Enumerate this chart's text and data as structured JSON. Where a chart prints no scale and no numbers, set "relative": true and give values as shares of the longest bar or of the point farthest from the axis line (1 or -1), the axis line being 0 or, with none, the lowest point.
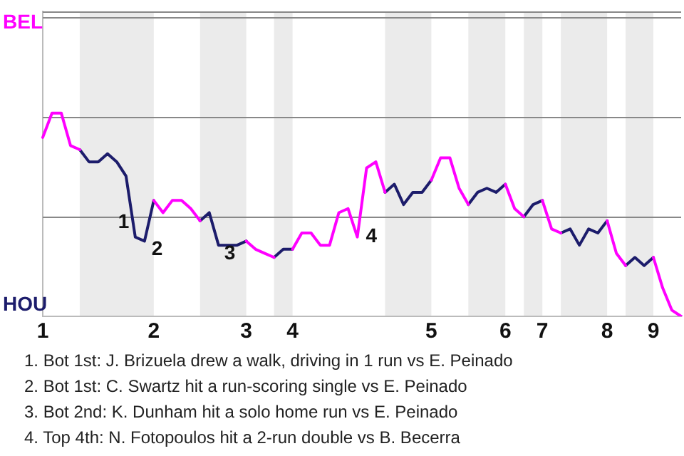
{
  "chart_data": {
    "type": "line",
    "relative": true,
    "categories": [
      "1",
      null,
      null,
      null,
      null,
      null,
      null,
      null,
      null,
      null,
      null,
      null,
      "2",
      null,
      null,
      null,
      null,
      null,
      null,
      null,
      null,
      null,
      "3",
      null,
      null,
      null,
      null,
      "4",
      null,
      null,
      null,
      null,
      null,
      null,
      null,
      null,
      null,
      null,
      null,
      null,
      null,
      null,
      "5",
      null,
      null,
      null,
      null,
      null,
      null,
      null,
      "6",
      null,
      null,
      null,
      "7",
      null,
      null,
      null,
      null,
      null,
      null,
      "8",
      null,
      null,
      null,
      null,
      "9",
      null,
      null,
      null
    ],
    "marker": "none",
    "ref_lines": [
      {
        "axis": "y",
        "value": 0.49,
        "color": "#888888"
      },
      {
        "axis": "y",
        "value": 0.98,
        "color": "#888888"
      },
      {
        "axis": "y",
        "value": 1.47,
        "color": "#888888"
      }
    ],
    "line_style": "solid",
    "series": [
      {
        "color": "#ff00ff",
        "values": [
          0.88,
          1,
          1,
          0.84,
          0.82,
          null,
          null,
          null,
          null,
          null,
          null,
          null,
          0.57,
          0.51,
          0.57,
          0.57,
          0.53,
          0.47,
          null,
          null,
          null,
          null,
          0.37,
          0.33,
          0.31,
          0.29,
          null,
          0.33,
          0.41,
          0.41,
          0.35,
          0.35,
          0.51,
          0.53,
          0.39,
          0.73,
          0.76,
          0.61,
          null,
          null,
          null,
          null,
          0.67,
          0.78,
          0.78,
          0.63,
          0.55,
          null,
          null,
          null,
          0.65,
          0.53,
          0.49,
          null,
          0.57,
          0.43,
          0.41,
          null,
          null,
          null,
          null,
          0.47,
          0.31,
          0.25,
          null,
          null,
          0.29,
          0.14,
          0.03,
          0
        ]
      },
      {
        "color": "#1c1c6b",
        "values": [
          null,
          null,
          null,
          null,
          0.82,
          0.76,
          0.76,
          0.8,
          0.76,
          0.69,
          0.39,
          0.37,
          0.57,
          null,
          null,
          null,
          null,
          0.47,
          0.51,
          0.35,
          0.35,
          0.35,
          0.37,
          null,
          null,
          0.29,
          0.33,
          0.33,
          null,
          null,
          null,
          null,
          null,
          null,
          null,
          null,
          null,
          0.61,
          0.65,
          0.55,
          0.61,
          0.61,
          0.67,
          null,
          null,
          null,
          0.55,
          0.61,
          0.63,
          0.61,
          0.65,
          null,
          0.49,
          0.55,
          0.57,
          null,
          0.41,
          0.43,
          0.35,
          0.43,
          0.41,
          0.47,
          null,
          0.25,
          0.29,
          0.25,
          0.29,
          null,
          null,
          null
        ]
      }
    ],
    "annotations": [
      "BEL",
      "HOU",
      "1",
      "2",
      "3",
      "4",
      "1. Bot 1st: J. Brizuela drew a walk, driving in 1 run vs E. Peinado",
      "2. Bot 1st: C. Swartz hit a run-scoring single vs E. Peinado",
      "3. Bot 2nd: K. Dunham hit a solo home run vs E. Peinado",
      "4. Top 4th: N. Fotopoulos hit a 2-run double vs B. Becerra"
    ]
  }
}
